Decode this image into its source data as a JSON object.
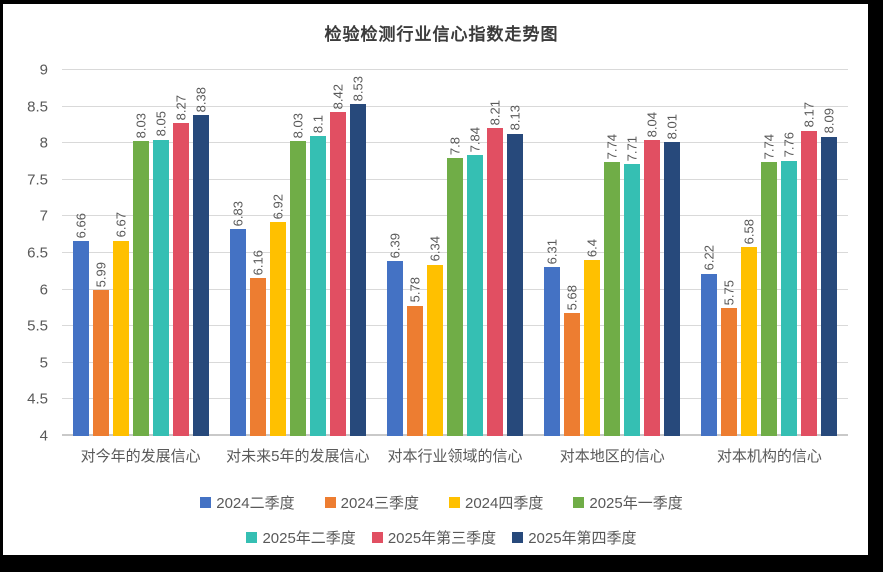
{
  "chart_data": {
    "type": "bar",
    "title": "检验检测行业信心指数走势图",
    "xlabel": "",
    "ylabel": "",
    "categories": [
      "对今年的发展信心",
      "对未来5年的发展信心",
      "对本行业领域的信心",
      "对本地区的信心",
      "对本机构的信心"
    ],
    "series": [
      {
        "name": "2024二季度",
        "color": "#4472C4",
        "values": [
          6.66,
          6.83,
          6.39,
          6.31,
          6.22
        ]
      },
      {
        "name": "2024三季度",
        "color": "#ED7D31",
        "values": [
          5.99,
          6.16,
          5.78,
          5.68,
          5.75
        ]
      },
      {
        "name": "2024四季度",
        "color": "#FFC000",
        "values": [
          6.67,
          6.92,
          6.34,
          6.4,
          6.58
        ]
      },
      {
        "name": "2025年一季度",
        "color": "#70AD47",
        "values": [
          8.03,
          8.03,
          7.8,
          7.74,
          7.74
        ]
      },
      {
        "name": "2025年二季度",
        "color": "#35BFB3",
        "values": [
          8.05,
          8.1,
          7.84,
          7.71,
          7.76
        ]
      },
      {
        "name": "2025年第三季度",
        "color": "#E14F62",
        "values": [
          8.27,
          8.42,
          8.21,
          8.04,
          8.17
        ]
      },
      {
        "name": "2025年第四季度",
        "color": "#27497B",
        "values": [
          8.38,
          8.53,
          8.13,
          8.01,
          8.09
        ]
      }
    ],
    "ylim": [
      4,
      9
    ],
    "yticks": [
      4,
      4.5,
      5,
      5.5,
      6,
      6.5,
      7,
      7.5,
      8,
      8.5,
      9
    ],
    "grid": true,
    "data_labels": true,
    "data_label_rotation": 90,
    "legend_position": "bottom",
    "legend_rows": [
      [
        0,
        1,
        2,
        3
      ],
      [
        4,
        5,
        6
      ]
    ]
  },
  "style": {
    "background": "#ffffff",
    "frame_color": "#000000",
    "gridline_color": "#d9d9d9",
    "text_color": "#595959",
    "title_color": "#3b3b3b"
  }
}
